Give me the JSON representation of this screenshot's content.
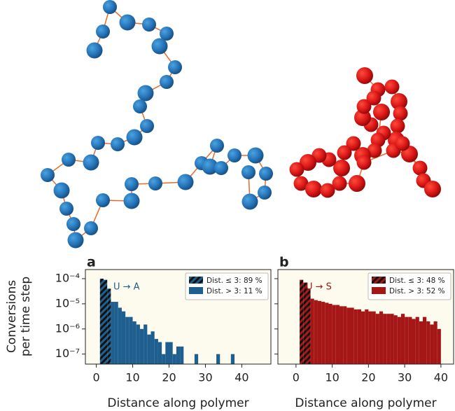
{
  "chart_data": [
    {
      "type": "histogram",
      "panel": "a",
      "annotation": "U → A",
      "ylabel": [
        "Conversions",
        "per time step"
      ],
      "xlabel": "Distance along polymer",
      "log_y": true,
      "legend": "upper right",
      "xlim": [
        -3,
        48
      ],
      "xticks": [
        0,
        10,
        20,
        30,
        40
      ],
      "ylim": [
        4e-08,
        0.00023
      ],
      "yticks": [
        {
          "value": 0.0001,
          "label": "10⁻⁴"
        },
        {
          "value": 1e-05,
          "label": "10⁻⁵"
        },
        {
          "value": 1e-06,
          "label": "10⁻⁶"
        },
        {
          "value": 1e-07,
          "label": "10⁻⁷"
        }
      ],
      "series": [
        {
          "name": "Dist. ≤ 3: 89 %",
          "color": "#1f5f8f",
          "hatch": true,
          "bins": [
            1,
            2,
            3,
            4
          ],
          "values": [
            0.0001,
            9e-05,
            4e-05
          ]
        },
        {
          "name": "Dist. > 3: 11 %",
          "color": "#1f5f8f",
          "hatch": false,
          "bins": [
            4,
            5,
            6,
            7,
            8,
            9,
            10,
            11,
            12,
            13,
            14,
            15,
            16,
            17,
            18,
            19,
            20,
            21,
            22,
            23,
            24,
            25,
            26,
            27,
            28,
            29,
            30,
            31,
            32,
            33,
            34,
            35,
            36,
            37,
            38
          ],
          "values": [
            1.2e-05,
            1.2e-05,
            7e-06,
            5e-06,
            3e-06,
            3e-06,
            2e-06,
            1.5e-06,
            1e-06,
            1.5e-06,
            6e-07,
            8e-07,
            4e-07,
            3e-07,
            1e-07,
            3e-07,
            3e-07,
            1e-07,
            2e-07,
            2e-07,
            0,
            0,
            0,
            1e-07,
            0,
            0,
            0,
            0,
            0,
            1e-07,
            0,
            0,
            0,
            1e-07
          ]
        }
      ]
    },
    {
      "type": "histogram",
      "panel": "b",
      "annotation": "U → S",
      "xlabel": "Distance along polymer",
      "log_y": true,
      "legend": "upper right",
      "show_ytick_labels": false,
      "xlim": [
        -5,
        43.5
      ],
      "xticks": [
        0,
        10,
        20,
        30,
        40
      ],
      "ylim": [
        4e-08,
        0.00023
      ],
      "yticks": [
        0.0001,
        1e-05,
        1e-06,
        1e-07
      ],
      "series": [
        {
          "name": "Dist. ≤ 3: 48 %",
          "color": "#a51717",
          "hatch": true,
          "bins": [
            1,
            2,
            3,
            4
          ],
          "values": [
            9e-05,
            7e-05,
            4e-05
          ]
        },
        {
          "name": "Dist. > 3: 52 %",
          "color": "#a51717",
          "hatch": false,
          "bins": [
            4,
            5,
            6,
            7,
            8,
            9,
            10,
            11,
            12,
            13,
            14,
            15,
            16,
            17,
            18,
            19,
            20,
            21,
            22,
            23,
            24,
            25,
            26,
            27,
            28,
            29,
            30,
            31,
            32,
            33,
            34,
            35,
            36,
            37,
            38,
            39,
            40
          ],
          "values": [
            1.6e-05,
            1.4e-05,
            1.3e-05,
            1.2e-05,
            1.1e-05,
            1e-05,
            9e-06,
            9e-06,
            8e-06,
            8e-06,
            7e-06,
            7e-06,
            6e-06,
            6e-06,
            5e-06,
            6e-06,
            5e-06,
            5e-06,
            4e-06,
            5e-06,
            4e-06,
            4e-06,
            4e-06,
            3.5e-06,
            3e-06,
            4e-06,
            3e-06,
            3e-06,
            2.5e-06,
            3e-06,
            2e-06,
            3e-06,
            2e-06,
            1.5e-06,
            2e-06,
            1e-06
          ]
        }
      ]
    }
  ]
}
